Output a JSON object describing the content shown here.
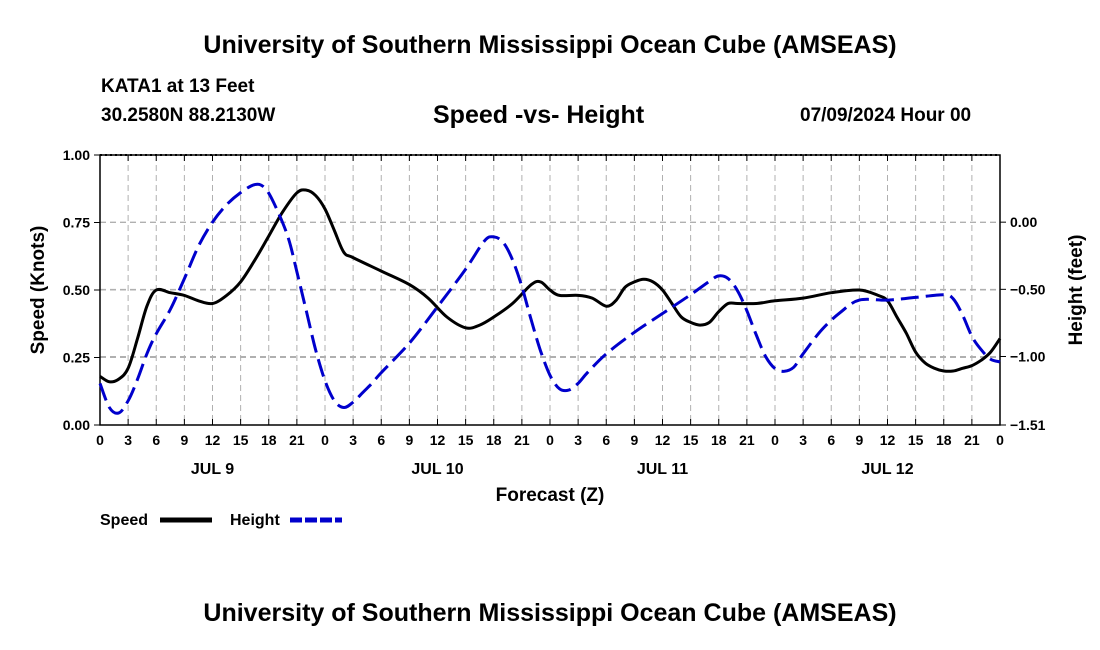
{
  "header": {
    "title": "University of Southern Mississippi Ocean Cube (AMSEAS)",
    "station": "KATA1 at 13 Feet",
    "coords": "30.2580N  88.2130W",
    "chart_title": "Speed -vs- Height",
    "datetime": "07/09/2024 Hour 00"
  },
  "footer": {
    "title": "University of Southern Mississippi Ocean Cube (AMSEAS)"
  },
  "colors": {
    "speed": "#000000",
    "height": "#0000cc",
    "grid": "#b0b0b0"
  },
  "chart_data": {
    "type": "line",
    "xlabel": "Forecast (Z)",
    "ylabel": "Speed (Knots)",
    "ylabel_right": "Height (feet)",
    "x_range_hours": [
      0,
      96
    ],
    "ylim": [
      0,
      1.0
    ],
    "ylim_right": [
      -1.51,
      0.5
    ],
    "y_ticks": [
      "0.00",
      "0.25",
      "0.50",
      "0.75",
      "1.00"
    ],
    "y_right_ticks": [
      {
        "value": -1.51,
        "label": "-1.51"
      },
      {
        "value": -1.0,
        "label": "-1.00"
      },
      {
        "value": -0.5,
        "label": "-0.50"
      },
      {
        "value": 0.0,
        "label": "0.00"
      }
    ],
    "x_tick_labels": [
      "0",
      "3",
      "6",
      "9",
      "12",
      "15",
      "18",
      "21",
      "0",
      "3",
      "6",
      "9",
      "12",
      "15",
      "18",
      "21",
      "0",
      "3",
      "6",
      "9",
      "12",
      "15",
      "18",
      "21",
      "0",
      "3",
      "6",
      "9",
      "12",
      "15",
      "18",
      "21",
      "0"
    ],
    "day_labels": [
      {
        "label": "JUL 9",
        "hour": 12
      },
      {
        "label": "JUL 10",
        "hour": 36
      },
      {
        "label": "JUL 11",
        "hour": 60
      },
      {
        "label": "JUL 12",
        "hour": 84
      }
    ],
    "legend": {
      "speed_label": "Speed",
      "height_label": "Height",
      "position": "bottom-left"
    },
    "series": [
      {
        "name": "Speed",
        "axis": "left",
        "style": "solid",
        "hours": [
          0,
          1,
          2,
          3,
          4,
          5,
          6,
          7.5,
          9,
          10.5,
          12,
          13.5,
          15,
          16.5,
          18,
          19.5,
          21,
          22,
          23,
          24,
          25,
          26,
          27,
          30,
          33,
          35,
          37,
          39,
          40.5,
          42,
          44,
          46,
          47,
          48,
          49,
          51,
          52.5,
          54,
          55,
          56,
          57,
          58,
          59,
          60,
          61,
          62,
          63,
          64,
          65,
          66,
          67,
          68,
          70,
          72,
          75,
          78,
          81,
          83,
          84,
          85,
          86,
          87,
          88,
          89,
          90,
          91,
          92,
          93,
          94,
          95,
          96
        ],
        "values": [
          0.18,
          0.16,
          0.17,
          0.21,
          0.32,
          0.44,
          0.5,
          0.49,
          0.48,
          0.46,
          0.45,
          0.48,
          0.53,
          0.61,
          0.7,
          0.79,
          0.86,
          0.87,
          0.85,
          0.8,
          0.72,
          0.64,
          0.62,
          0.57,
          0.52,
          0.47,
          0.4,
          0.36,
          0.37,
          0.4,
          0.45,
          0.52,
          0.53,
          0.5,
          0.48,
          0.48,
          0.47,
          0.44,
          0.46,
          0.51,
          0.53,
          0.54,
          0.53,
          0.5,
          0.45,
          0.4,
          0.38,
          0.37,
          0.38,
          0.42,
          0.45,
          0.45,
          0.45,
          0.46,
          0.47,
          0.49,
          0.5,
          0.48,
          0.46,
          0.4,
          0.34,
          0.27,
          0.23,
          0.21,
          0.2,
          0.2,
          0.21,
          0.22,
          0.24,
          0.27,
          0.32
        ]
      },
      {
        "name": "Height",
        "axis": "right",
        "style": "dashed",
        "hours": [
          0,
          1,
          2,
          3,
          4,
          5,
          6,
          7.5,
          9,
          10.5,
          12,
          13.5,
          15,
          16.5,
          17.5,
          18.5,
          20,
          21,
          22,
          23,
          24,
          25,
          26,
          27,
          28,
          29,
          30,
          33,
          36,
          39,
          41,
          42,
          43,
          44,
          45,
          46,
          47,
          48,
          49,
          50,
          51,
          52,
          54,
          57,
          60,
          63,
          65,
          66,
          67,
          68,
          69,
          70,
          71,
          72,
          73,
          74,
          75,
          77,
          79,
          81,
          84,
          87,
          90,
          91,
          92,
          93,
          94,
          95,
          96
        ],
        "values": [
          -1.2,
          -1.38,
          -1.42,
          -1.33,
          -1.17,
          -0.98,
          -0.83,
          -0.65,
          -0.42,
          -0.18,
          0.0,
          0.13,
          0.22,
          0.28,
          0.26,
          0.15,
          -0.1,
          -0.37,
          -0.66,
          -0.95,
          -1.18,
          -1.33,
          -1.38,
          -1.34,
          -1.27,
          -1.2,
          -1.12,
          -0.9,
          -0.63,
          -0.35,
          -0.14,
          -0.11,
          -0.15,
          -0.28,
          -0.48,
          -0.73,
          -0.96,
          -1.14,
          -1.24,
          -1.25,
          -1.2,
          -1.12,
          -0.98,
          -0.82,
          -0.68,
          -0.54,
          -0.44,
          -0.4,
          -0.42,
          -0.51,
          -0.66,
          -0.84,
          -1.0,
          -1.09,
          -1.11,
          -1.08,
          -0.98,
          -0.8,
          -0.67,
          -0.58,
          -0.58,
          -0.56,
          -0.54,
          -0.57,
          -0.69,
          -0.85,
          -0.95,
          -1.02,
          -1.04
        ]
      }
    ]
  }
}
